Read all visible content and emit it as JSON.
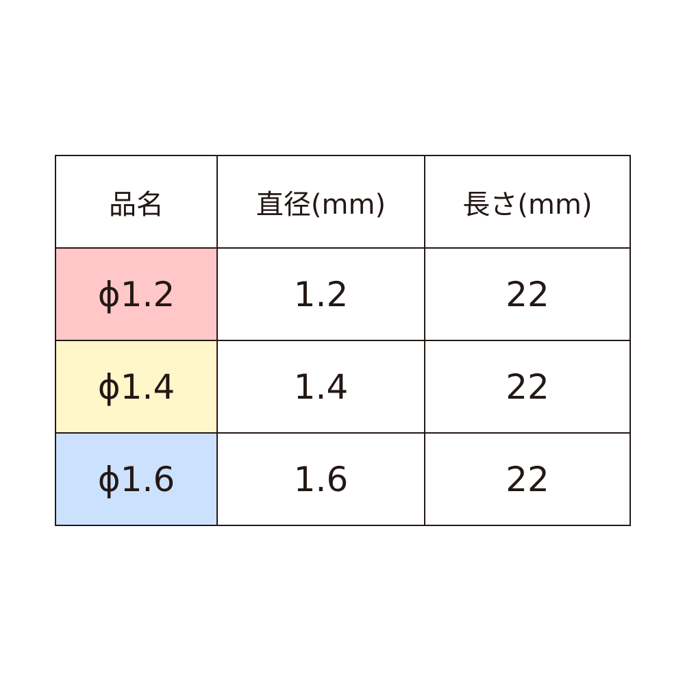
{
  "table": {
    "headers": [
      "品名",
      "直径(mm)",
      "長さ(mm)"
    ],
    "rows": [
      {
        "name": "ϕ1.2",
        "diameter": "1.2",
        "length": "22",
        "color": "#ffc7c7"
      },
      {
        "name": "ϕ1.4",
        "diameter": "1.4",
        "length": "22",
        "color": "#fff6c9"
      },
      {
        "name": "ϕ1.6",
        "diameter": "1.6",
        "length": "22",
        "color": "#cce1fd"
      }
    ],
    "border_color": "#231815"
  }
}
